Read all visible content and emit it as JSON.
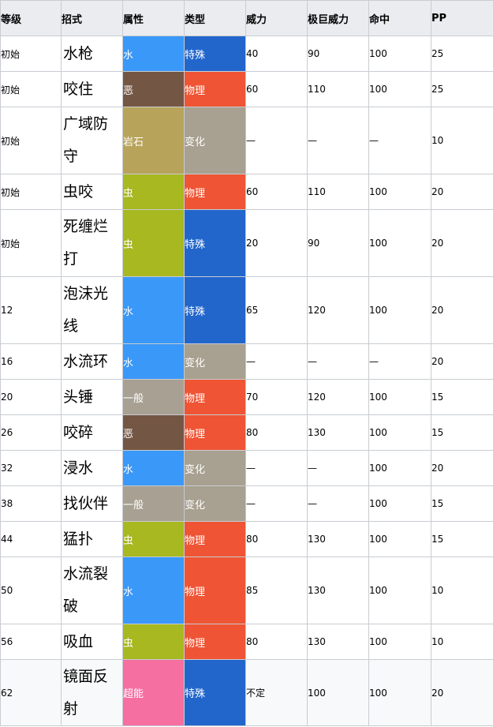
{
  "headers": [
    "等级",
    "招式",
    "属性",
    "类型",
    "威力",
    "极巨威力",
    "命中",
    "PP"
  ],
  "type_colors": {
    "水": "#3a98f8",
    "恶": "#745644",
    "岩石": "#b8a35a",
    "虫": "#a7b821",
    "一般": "#a8a093",
    "超能": "#f66fa1"
  },
  "category_colors": {
    "特殊": "#2266cc",
    "物理": "#ef5434",
    "变化": "#a8a090"
  },
  "rows": [
    {
      "level": "初始",
      "move": "水枪",
      "type": "水",
      "category": "特殊",
      "power": "40",
      "max_power": "90",
      "accuracy": "100",
      "pp": "25"
    },
    {
      "level": "初始",
      "move": "咬住",
      "type": "恶",
      "category": "物理",
      "power": "60",
      "max_power": "110",
      "accuracy": "100",
      "pp": "25"
    },
    {
      "level": "初始",
      "move": "广域防守",
      "type": "岩石",
      "category": "变化",
      "power": "—",
      "max_power": "—",
      "accuracy": "—",
      "pp": "10"
    },
    {
      "level": "初始",
      "move": "虫咬",
      "type": "虫",
      "category": "物理",
      "power": "60",
      "max_power": "110",
      "accuracy": "100",
      "pp": "20"
    },
    {
      "level": "初始",
      "move": "死缠烂打",
      "type": "虫",
      "category": "特殊",
      "power": "20",
      "max_power": "90",
      "accuracy": "100",
      "pp": "20"
    },
    {
      "level": "12",
      "move": "泡沫光线",
      "type": "水",
      "category": "特殊",
      "power": "65",
      "max_power": "120",
      "accuracy": "100",
      "pp": "20"
    },
    {
      "level": "16",
      "move": "水流环",
      "type": "水",
      "category": "变化",
      "power": "—",
      "max_power": "—",
      "accuracy": "—",
      "pp": "20"
    },
    {
      "level": "20",
      "move": "头锤",
      "type": "一般",
      "category": "物理",
      "power": "70",
      "max_power": "120",
      "accuracy": "100",
      "pp": "15"
    },
    {
      "level": "26",
      "move": "咬碎",
      "type": "恶",
      "category": "物理",
      "power": "80",
      "max_power": "130",
      "accuracy": "100",
      "pp": "15"
    },
    {
      "level": "32",
      "move": "浸水",
      "type": "水",
      "category": "变化",
      "power": "—",
      "max_power": "—",
      "accuracy": "100",
      "pp": "20"
    },
    {
      "level": "38",
      "move": "找伙伴",
      "type": "一般",
      "category": "变化",
      "power": "—",
      "max_power": "—",
      "accuracy": "100",
      "pp": "15"
    },
    {
      "level": "44",
      "move": "猛扑",
      "type": "虫",
      "category": "物理",
      "power": "80",
      "max_power": "130",
      "accuracy": "100",
      "pp": "15"
    },
    {
      "level": "50",
      "move": "水流裂破",
      "type": "水",
      "category": "物理",
      "power": "85",
      "max_power": "130",
      "accuracy": "100",
      "pp": "10"
    },
    {
      "level": "56",
      "move": "吸血",
      "type": "虫",
      "category": "物理",
      "power": "80",
      "max_power": "130",
      "accuracy": "100",
      "pp": "10"
    },
    {
      "level": "62",
      "move": "镜面反射",
      "type": "超能",
      "category": "特殊",
      "power": "不定",
      "max_power": "100",
      "accuracy": "100",
      "pp": "20"
    }
  ]
}
